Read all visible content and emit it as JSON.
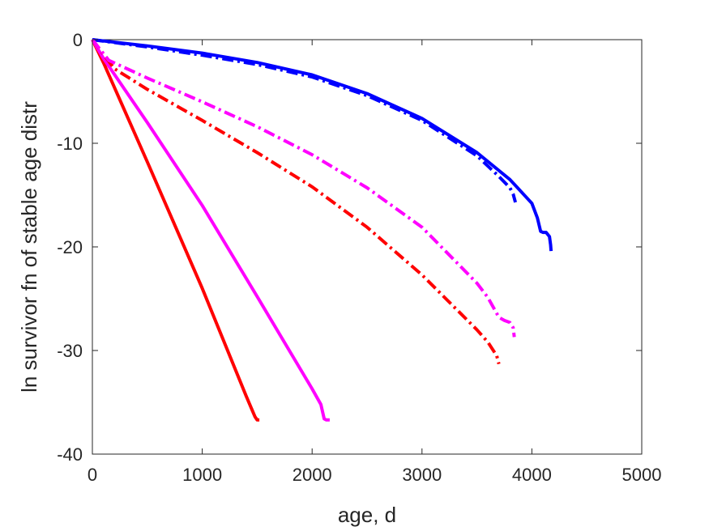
{
  "chart_data": {
    "type": "line",
    "title": "",
    "xlabel": "age, d",
    "ylabel": "ln survivor fn of stable age distr",
    "xlim": [
      0,
      5000
    ],
    "ylim": [
      -40,
      0
    ],
    "xticks": [
      0,
      1000,
      2000,
      3000,
      4000,
      5000
    ],
    "yticks": [
      -40,
      -30,
      -20,
      -10,
      0
    ],
    "xtick_labels": [
      "0",
      "1000",
      "2000",
      "3000",
      "4000",
      "5000"
    ],
    "ytick_labels": [
      "-40",
      "-30",
      "-20",
      "-10",
      "0"
    ],
    "grid": false,
    "legend": "none",
    "series": [
      {
        "color": "#0000ff",
        "style": "solid",
        "x": [
          0,
          500,
          1000,
          1500,
          2000,
          2500,
          3000,
          3500,
          3800,
          4000,
          4050,
          4080,
          4100,
          4130,
          4160,
          4170,
          4175
        ],
        "y": [
          0,
          -0.6,
          -1.3,
          -2.2,
          -3.4,
          -5.2,
          -7.6,
          -10.9,
          -13.5,
          -15.8,
          -17.2,
          -18.5,
          -18.6,
          -18.6,
          -19.0,
          -19.8,
          -20.4
        ]
      },
      {
        "color": "#0000ff",
        "style": "dashdot",
        "x": [
          0,
          500,
          1000,
          1500,
          2000,
          2500,
          3000,
          3500,
          3700,
          3800,
          3830,
          3850
        ],
        "y": [
          0,
          -0.7,
          -1.5,
          -2.4,
          -3.6,
          -5.4,
          -7.8,
          -11.2,
          -13.2,
          -14.3,
          -14.9,
          -15.7
        ]
      },
      {
        "color": "#ff0000",
        "style": "solid",
        "x": [
          0,
          100,
          500,
          1000,
          1400,
          1480,
          1500,
          1520
        ],
        "y": [
          0,
          -2.2,
          -11.8,
          -24.0,
          -34.4,
          -36.4,
          -36.7,
          -36.7
        ]
      },
      {
        "color": "#ff00ff",
        "style": "solid",
        "x": [
          0,
          100,
          500,
          1000,
          1500,
          2000,
          2080,
          2110,
          2130,
          2160
        ],
        "y": [
          0,
          -1.8,
          -8.0,
          -16.0,
          -24.8,
          -33.7,
          -35.2,
          -36.6,
          -36.7,
          -36.7
        ]
      },
      {
        "color": "#ff0000",
        "style": "dashdot",
        "x": [
          0,
          200,
          500,
          1000,
          1500,
          2000,
          2500,
          3000,
          3500,
          3600,
          3680,
          3700
        ],
        "y": [
          0,
          -2.8,
          -4.8,
          -7.8,
          -10.9,
          -14.2,
          -18.1,
          -22.7,
          -28.0,
          -29.2,
          -30.5,
          -31.3
        ]
      },
      {
        "color": "#ff00ff",
        "style": "dashdot",
        "x": [
          0,
          150,
          500,
          1000,
          1500,
          2000,
          2500,
          3000,
          3500,
          3600,
          3700,
          3750,
          3800,
          3830,
          3840
        ],
        "y": [
          0,
          -2.0,
          -3.7,
          -6.0,
          -8.4,
          -11.1,
          -14.3,
          -18.1,
          -23.5,
          -24.9,
          -26.8,
          -27.1,
          -27.3,
          -27.8,
          -28.7
        ]
      }
    ]
  }
}
